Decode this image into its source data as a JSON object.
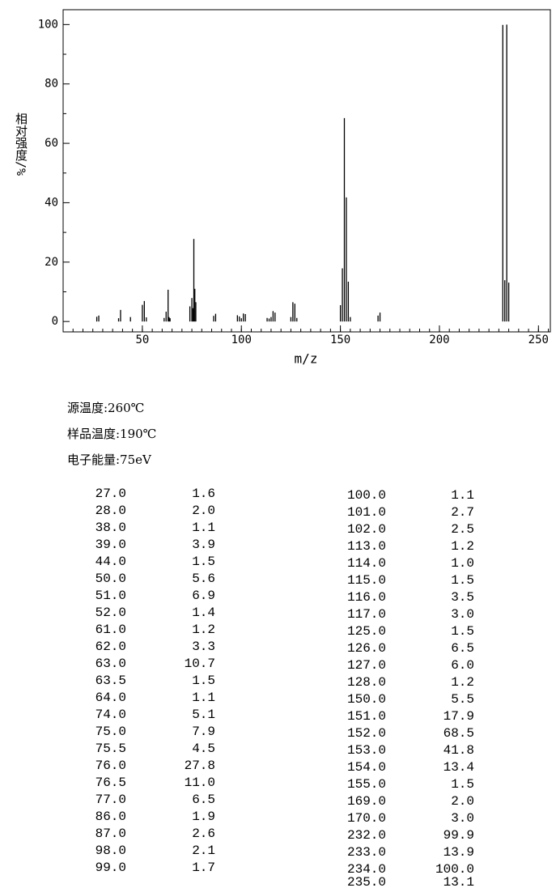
{
  "chart_data": {
    "type": "stick",
    "x_label": "m/z",
    "y_label": "相对强度/%",
    "color": "#000000",
    "xlim": [
      10,
      256
    ],
    "ylim": [
      -3.5,
      105
    ],
    "xticks": [
      50,
      100,
      150,
      200,
      250
    ],
    "yticks": [
      0,
      20,
      40,
      60,
      80,
      100
    ],
    "x": [
      27,
      28,
      38,
      39,
      44,
      50,
      51,
      52,
      61,
      62,
      63,
      63.5,
      64,
      74,
      75,
      75.5,
      76,
      76.5,
      77,
      86,
      87,
      98,
      99,
      100,
      101,
      102,
      113,
      114,
      115,
      116,
      117,
      125,
      126,
      127,
      128,
      150,
      151,
      152,
      153,
      154,
      155,
      169,
      170,
      232,
      233,
      234,
      235
    ],
    "values": [
      1.6,
      2.0,
      1.1,
      3.9,
      1.5,
      5.6,
      6.9,
      1.4,
      1.2,
      3.3,
      10.7,
      1.5,
      1.1,
      5.1,
      7.9,
      4.5,
      27.8,
      11.0,
      6.5,
      1.9,
      2.6,
      2.1,
      1.7,
      1.1,
      2.7,
      2.5,
      1.2,
      1.0,
      1.5,
      3.5,
      3.0,
      1.5,
      6.5,
      6.0,
      1.2,
      5.5,
      17.9,
      68.5,
      41.8,
      13.4,
      1.5,
      2.0,
      3.0,
      99.9,
      13.9,
      100.0,
      13.1
    ]
  },
  "info": [
    "源温度:260℃",
    "样品温度:190℃",
    "电子能量:75eV"
  ],
  "table": {
    "left": [
      [
        "27.0",
        "1.6"
      ],
      [
        "28.0",
        "2.0"
      ],
      [
        "38.0",
        "1.1"
      ],
      [
        "39.0",
        "3.9"
      ],
      [
        "44.0",
        "1.5"
      ],
      [
        "50.0",
        "5.6"
      ],
      [
        "51.0",
        "6.9"
      ],
      [
        "52.0",
        "1.4"
      ],
      [
        "61.0",
        "1.2"
      ],
      [
        "62.0",
        "3.3"
      ],
      [
        "63.0",
        "10.7"
      ],
      [
        "63.5",
        "1.5"
      ],
      [
        "64.0",
        "1.1"
      ],
      [
        "74.0",
        "5.1"
      ],
      [
        "75.0",
        "7.9"
      ],
      [
        "75.5",
        "4.5"
      ],
      [
        "76.0",
        "27.8"
      ],
      [
        "76.5",
        "11.0"
      ],
      [
        "77.0",
        "6.5"
      ],
      [
        "86.0",
        "1.9"
      ],
      [
        "87.0",
        "2.6"
      ],
      [
        "98.0",
        "2.1"
      ],
      [
        "99.0",
        "1.7"
      ]
    ],
    "right": [
      [
        "100.0",
        "1.1"
      ],
      [
        "101.0",
        "2.7"
      ],
      [
        "102.0",
        "2.5"
      ],
      [
        "113.0",
        "1.2"
      ],
      [
        "114.0",
        "1.0"
      ],
      [
        "115.0",
        "1.5"
      ],
      [
        "116.0",
        "3.5"
      ],
      [
        "117.0",
        "3.0"
      ],
      [
        "125.0",
        "1.5"
      ],
      [
        "126.0",
        "6.5"
      ],
      [
        "127.0",
        "6.0"
      ],
      [
        "128.0",
        "1.2"
      ],
      [
        "150.0",
        "5.5"
      ],
      [
        "151.0",
        "17.9"
      ],
      [
        "152.0",
        "68.5"
      ],
      [
        "153.0",
        "41.8"
      ],
      [
        "154.0",
        "13.4"
      ],
      [
        "155.0",
        "1.5"
      ],
      [
        "169.0",
        "2.0"
      ],
      [
        "170.0",
        "3.0"
      ],
      [
        "232.0",
        "99.9"
      ],
      [
        "233.0",
        "13.9"
      ],
      [
        "234.0",
        "100.0"
      ],
      [
        "235.0",
        "13.1"
      ]
    ]
  }
}
